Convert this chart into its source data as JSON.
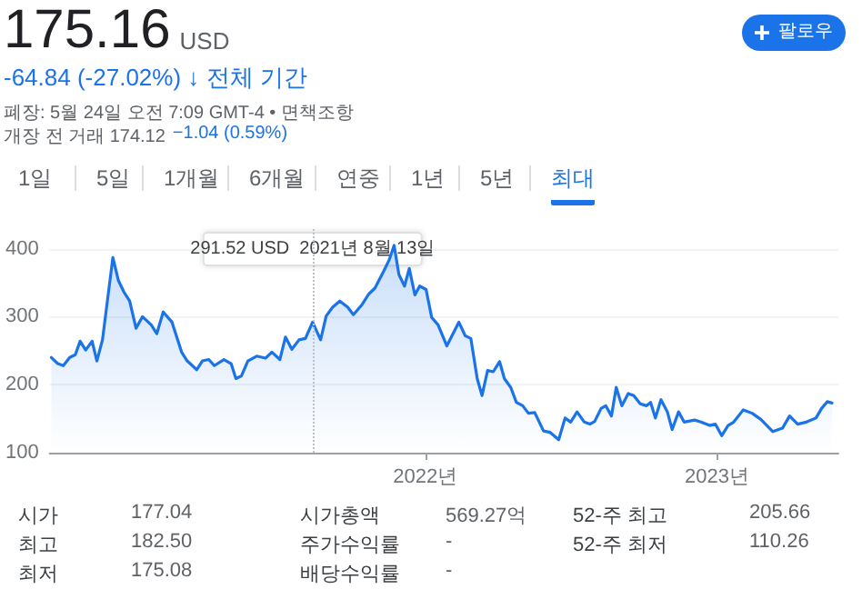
{
  "chart_data": {
    "type": "area",
    "title": "175.16",
    "subtitle": "-64.84 (-27.02%) ↓ 전체 기간",
    "annotations": [
      "291.52 USD  2021년 8월 13일",
      "USD",
      "폐장: 5월 24일 오전 7:09 GMT-4 • 면책조항",
      "개장 전 거래 174.12",
      "−1.04 (0.59%)",
      "팔로우",
      "1일",
      "5일",
      "1개월",
      "6개월",
      "연중",
      "1년",
      "5년",
      "최대",
      "시가",
      "177.04",
      "시가총액",
      "569.27억",
      "52-주 최고",
      "205.66",
      "최고",
      "182.50",
      "주가수익률",
      "-",
      "52-주 최저",
      "110.26",
      "최저",
      "175.08",
      "배당수익률",
      "-"
    ],
    "x": [
      "2020-09-20",
      "2020-09-28",
      "2020-10-05",
      "2020-10-13",
      "2020-10-20",
      "2020-10-26",
      "2020-11-02",
      "2020-11-10",
      "2020-11-16",
      "2020-11-23",
      "2020-12-06",
      "2020-12-13",
      "2020-12-20",
      "2020-12-27",
      "2021-01-04",
      "2021-01-12",
      "2021-01-23",
      "2021-01-30",
      "2021-02-07",
      "2021-02-18",
      "2021-03-02",
      "2021-03-09",
      "2021-03-21",
      "2021-03-28",
      "2021-04-05",
      "2021-04-12",
      "2021-04-24",
      "2021-05-03",
      "2021-05-09",
      "2021-05-16",
      "2021-05-24",
      "2021-06-04",
      "2021-06-15",
      "2021-06-23",
      "2021-07-03",
      "2021-07-10",
      "2021-07-18",
      "2021-07-27",
      "2021-08-04",
      "2021-08-13",
      "2021-08-23",
      "2021-08-30",
      "2021-09-07",
      "2021-09-16",
      "2021-09-26",
      "2021-10-03",
      "2021-10-14",
      "2021-10-22",
      "2021-10-30",
      "2021-11-10",
      "2021-11-17",
      "2021-11-23",
      "2021-11-29",
      "2021-12-06",
      "2021-12-12",
      "2021-12-19",
      "2021-12-25",
      "2022-01-02",
      "2022-01-09",
      "2022-01-17",
      "2022-01-28",
      "2022-02-12",
      "2022-02-20",
      "2022-02-27",
      "2022-03-07",
      "2022-03-13",
      "2022-03-20",
      "2022-03-27",
      "2022-04-04",
      "2022-04-10",
      "2022-04-18",
      "2022-04-25",
      "2022-05-03",
      "2022-05-10",
      "2022-05-18",
      "2022-05-29",
      "2022-06-06",
      "2022-06-17",
      "2022-06-25",
      "2022-07-02",
      "2022-07-10",
      "2022-07-19",
      "2022-07-26",
      "2022-08-01",
      "2022-08-09",
      "2022-08-15",
      "2022-08-22",
      "2022-08-28",
      "2022-09-04",
      "2022-09-12",
      "2022-09-19",
      "2022-09-27",
      "2022-10-05",
      "2022-10-10",
      "2022-10-16",
      "2022-10-23",
      "2022-10-31",
      "2022-11-06",
      "2022-11-14",
      "2022-11-21",
      "2022-12-04",
      "2022-12-12",
      "2022-12-23",
      "2022-12-30",
      "2023-01-07",
      "2023-01-15",
      "2023-01-22",
      "2023-02-03",
      "2023-02-14",
      "2023-02-25",
      "2023-03-12",
      "2023-03-24",
      "2023-04-02",
      "2023-04-12",
      "2023-04-23",
      "2023-05-05",
      "2023-05-12",
      "2023-05-19",
      "2023-05-25"
    ],
    "series": [
      {
        "color": "#1a73e8",
        "values": [
          240,
          231,
          228,
          240,
          244,
          264,
          251,
          264,
          235,
          266,
          387,
          353,
          336,
          323,
          283,
          300,
          288,
          275,
          307,
          292,
          248,
          235,
          222,
          235,
          237,
          228,
          237,
          231,
          209,
          213,
          235,
          242,
          239,
          248,
          237,
          270,
          252,
          266,
          268,
          292,
          266,
          301,
          314,
          323,
          314,
          303,
          318,
          333,
          342,
          367,
          384,
          405,
          362,
          345,
          371,
          332,
          345,
          340,
          299,
          288,
          257,
          292,
          272,
          268,
          209,
          184,
          221,
          219,
          234,
          209,
          196,
          174,
          169,
          158,
          159,
          132,
          130,
          119,
          151,
          145,
          160,
          145,
          142,
          146,
          165,
          169,
          154,
          196,
          169,
          187,
          184,
          172,
          169,
          174,
          151,
          178,
          160,
          134,
          160,
          145,
          148,
          145,
          140,
          142,
          125,
          140,
          145,
          163,
          158,
          149,
          131,
          136,
          154,
          142,
          145,
          151,
          165,
          175,
          173
        ]
      }
    ],
    "xlim": [
      "2020-09-18",
      "2023-06-02"
    ],
    "xticks": [
      {
        "value": "2022-01-01",
        "label": "2022년"
      },
      {
        "value": "2023-01-01",
        "label": "2023년"
      }
    ],
    "ylim": [
      100,
      430
    ],
    "yticks": [
      100,
      200,
      300,
      400
    ],
    "grid": "y",
    "ref_lines": [
      {
        "axis": "x",
        "value": "2021-08-13",
        "color": "#bdc1c6",
        "line_style": "dotted"
      }
    ]
  }
}
